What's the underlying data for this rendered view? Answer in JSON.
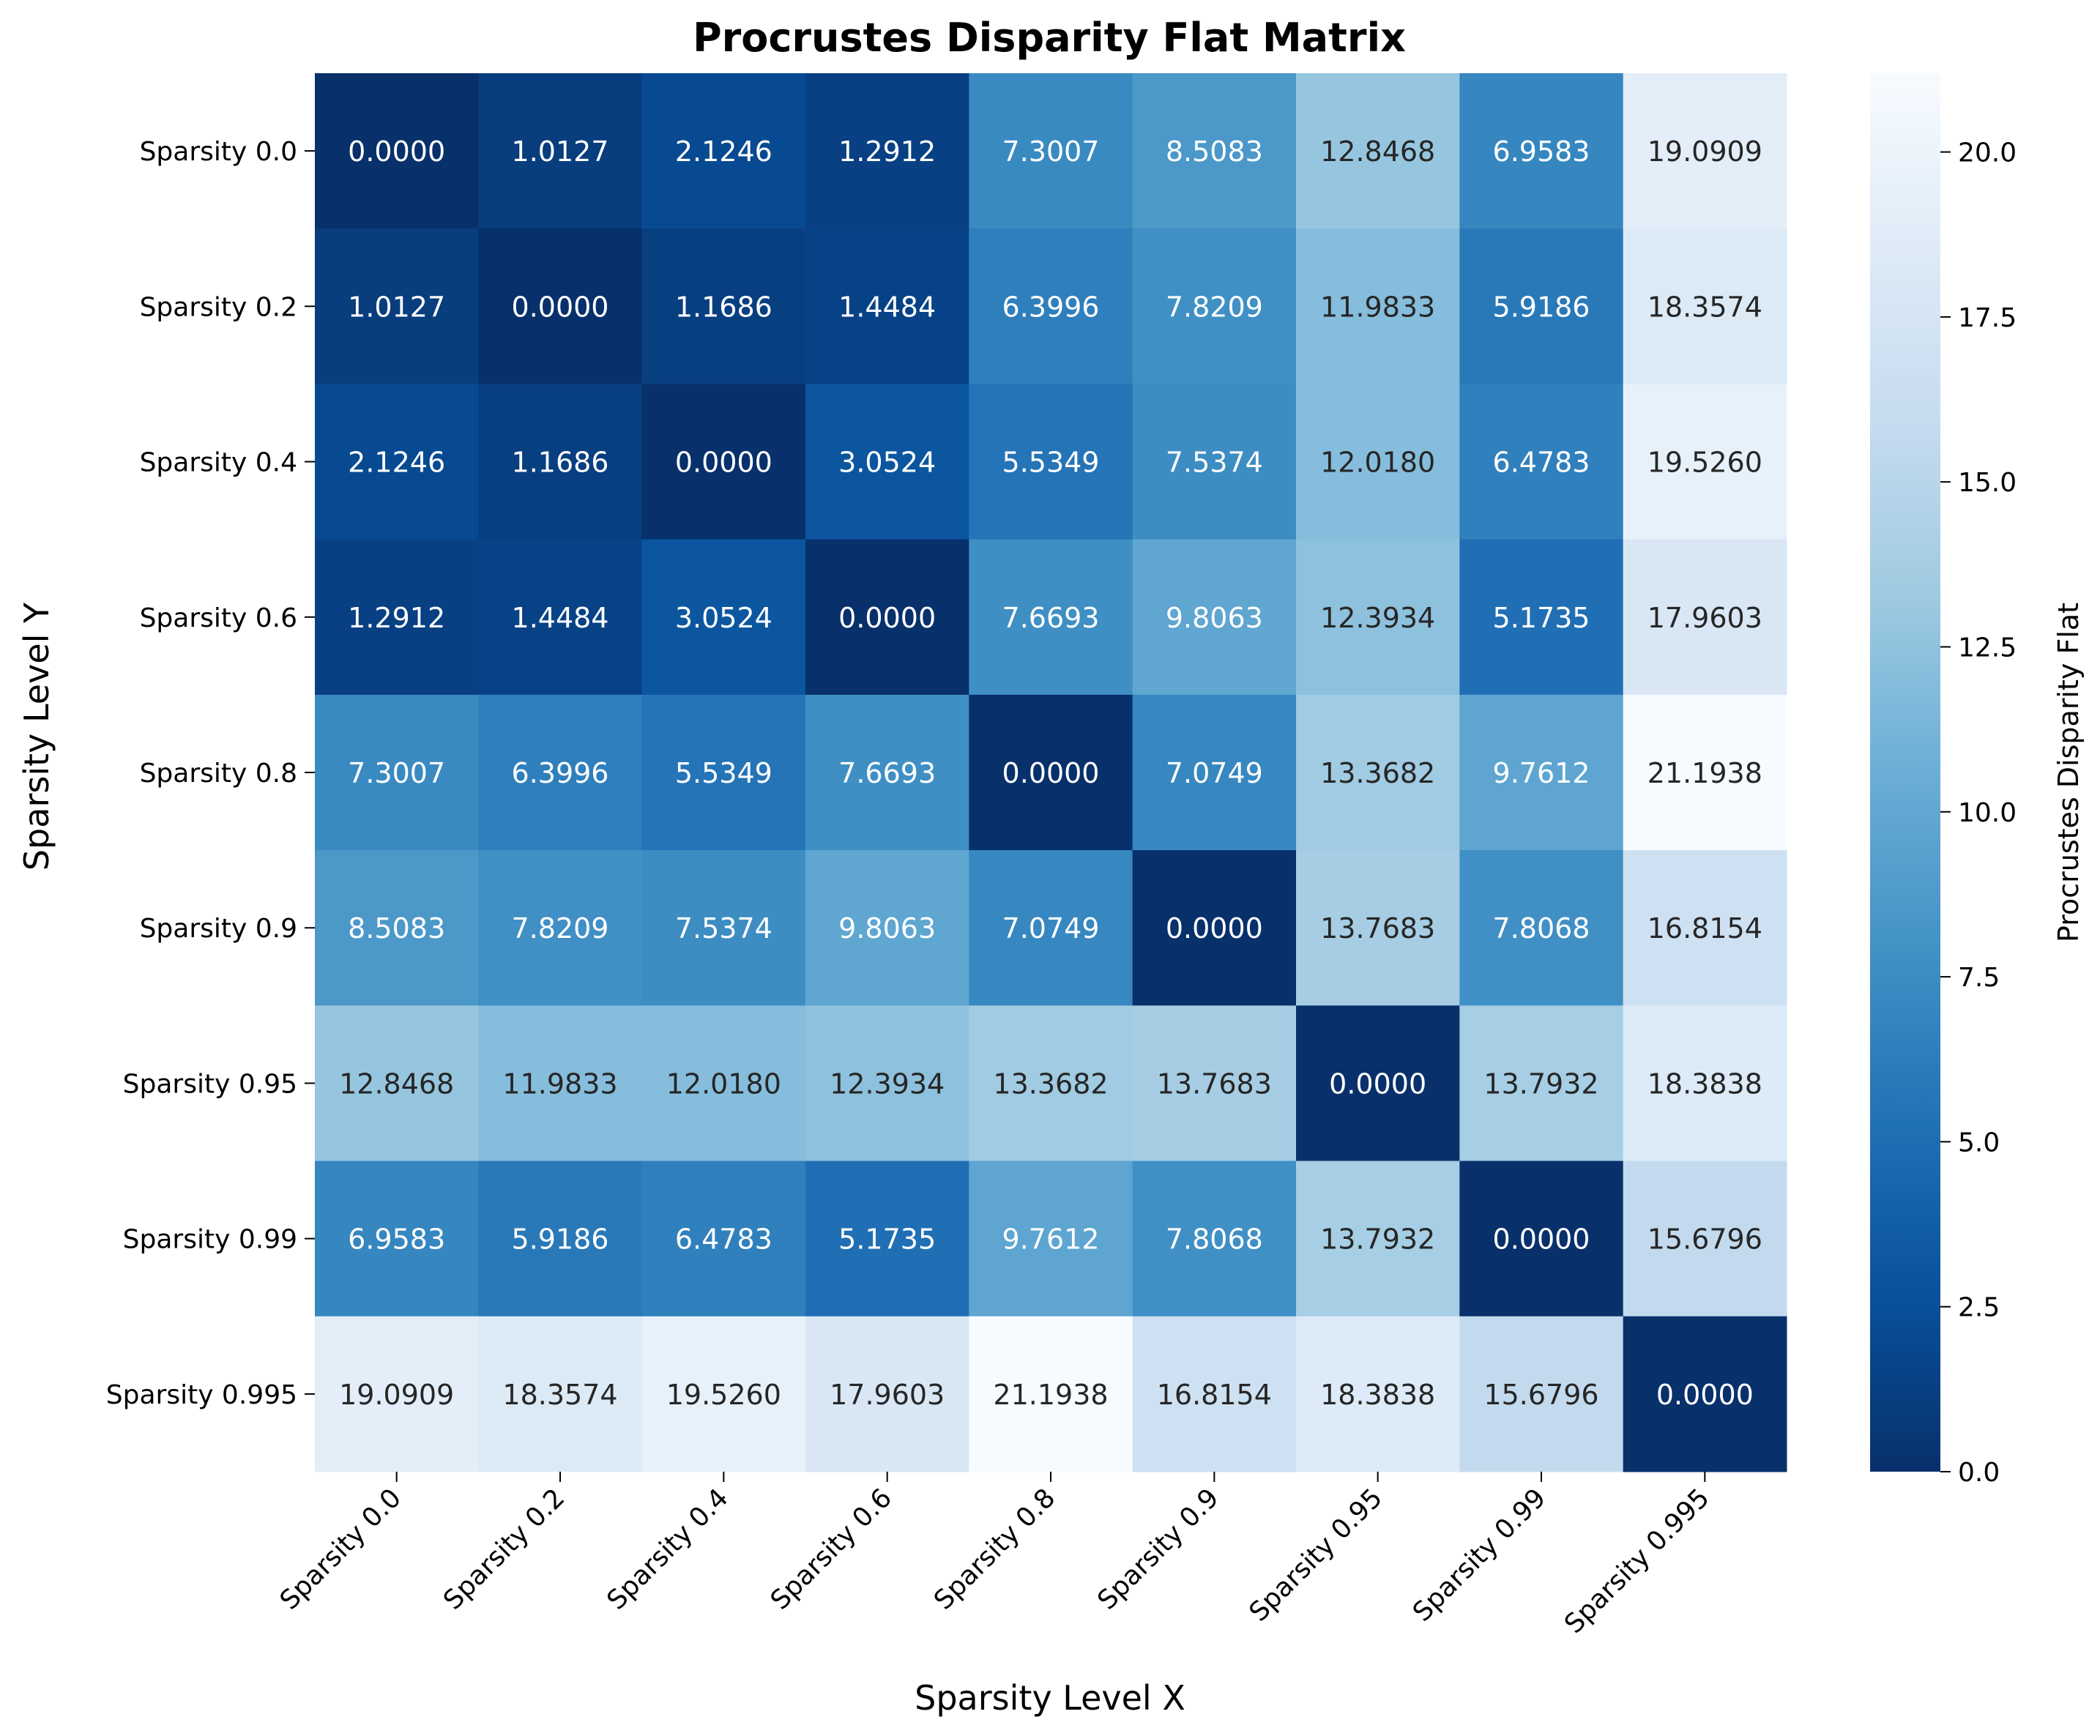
{
  "chart_data": {
    "type": "heatmap",
    "title": "Procrustes Disparity Flat Matrix",
    "xlabel": "Sparsity Level X",
    "ylabel": "Sparsity Level Y",
    "x_categories": [
      "Sparsity 0.0",
      "Sparsity 0.2",
      "Sparsity 0.4",
      "Sparsity 0.6",
      "Sparsity 0.8",
      "Sparsity 0.9",
      "Sparsity 0.95",
      "Sparsity 0.99",
      "Sparsity 0.995"
    ],
    "y_categories": [
      "Sparsity 0.0",
      "Sparsity 0.2",
      "Sparsity 0.4",
      "Sparsity 0.6",
      "Sparsity 0.8",
      "Sparsity 0.9",
      "Sparsity 0.95",
      "Sparsity 0.99",
      "Sparsity 0.995"
    ],
    "values": [
      [
        0.0,
        1.0127,
        2.1246,
        1.2912,
        7.3007,
        8.5083,
        12.8468,
        6.9583,
        19.0909
      ],
      [
        1.0127,
        0.0,
        1.1686,
        1.4484,
        6.3996,
        7.8209,
        11.9833,
        5.9186,
        18.3574
      ],
      [
        2.1246,
        1.1686,
        0.0,
        3.0524,
        5.5349,
        7.5374,
        12.018,
        6.4783,
        19.526
      ],
      [
        1.2912,
        1.4484,
        3.0524,
        0.0,
        7.6693,
        9.8063,
        12.3934,
        5.1735,
        17.9603
      ],
      [
        7.3007,
        6.3996,
        5.5349,
        7.6693,
        0.0,
        7.0749,
        13.3682,
        9.7612,
        21.1938
      ],
      [
        8.5083,
        7.8209,
        7.5374,
        9.8063,
        7.0749,
        0.0,
        13.7683,
        7.8068,
        16.8154
      ],
      [
        12.8468,
        11.9833,
        12.018,
        12.3934,
        13.3682,
        13.7683,
        0.0,
        13.7932,
        18.3838
      ],
      [
        6.9583,
        5.9186,
        6.4783,
        5.1735,
        9.7612,
        7.8068,
        13.7932,
        0.0,
        15.6796
      ],
      [
        19.0909,
        18.3574,
        19.526,
        17.9603,
        21.1938,
        16.8154,
        18.3838,
        15.6796,
        0.0
      ]
    ],
    "value_format": "4 decimals",
    "colormap": "Blues_r",
    "vmin": 0.0,
    "vmax": 21.1938,
    "colorbar": {
      "label": "Procrustes Disparity Flat",
      "ticks": [
        0.0,
        2.5,
        5.0,
        7.5,
        10.0,
        12.5,
        15.0,
        17.5,
        20.0
      ],
      "tick_labels": [
        "0.0",
        "2.5",
        "5.0",
        "7.5",
        "10.0",
        "12.5",
        "15.0",
        "17.5",
        "20.0"
      ]
    },
    "grid": false,
    "legend": "colorbar-right"
  }
}
